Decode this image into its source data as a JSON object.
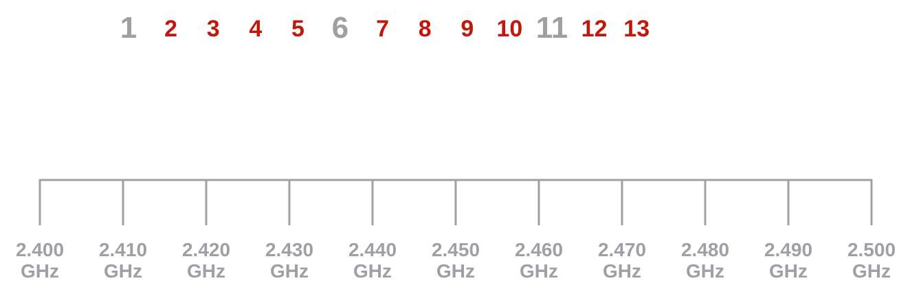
{
  "channels": [
    {
      "label": "1",
      "emphasis": true
    },
    {
      "label": "2",
      "emphasis": false
    },
    {
      "label": "3",
      "emphasis": false
    },
    {
      "label": "4",
      "emphasis": false
    },
    {
      "label": "5",
      "emphasis": false
    },
    {
      "label": "6",
      "emphasis": true
    },
    {
      "label": "7",
      "emphasis": false
    },
    {
      "label": "8",
      "emphasis": false
    },
    {
      "label": "9",
      "emphasis": false
    },
    {
      "label": "10",
      "emphasis": false
    },
    {
      "label": "11",
      "emphasis": true
    },
    {
      "label": "12",
      "emphasis": false
    },
    {
      "label": "13",
      "emphasis": false
    }
  ],
  "frequency_ticks": [
    {
      "value": "2.400",
      "unit": "GHz"
    },
    {
      "value": "2.410",
      "unit": "GHz"
    },
    {
      "value": "2.420",
      "unit": "GHz"
    },
    {
      "value": "2.430",
      "unit": "GHz"
    },
    {
      "value": "2.440",
      "unit": "GHz"
    },
    {
      "value": "2.450",
      "unit": "GHz"
    },
    {
      "value": "2.460",
      "unit": "GHz"
    },
    {
      "value": "2.470",
      "unit": "GHz"
    },
    {
      "value": "2.480",
      "unit": "GHz"
    },
    {
      "value": "2.490",
      "unit": "GHz"
    },
    {
      "value": "2.500",
      "unit": "GHz"
    }
  ],
  "colors": {
    "emphasis_channel": "#9ea0a5",
    "channel": "#c0180c",
    "axis": "#9ea0a5",
    "frequency_label": "#9ea0a5"
  }
}
